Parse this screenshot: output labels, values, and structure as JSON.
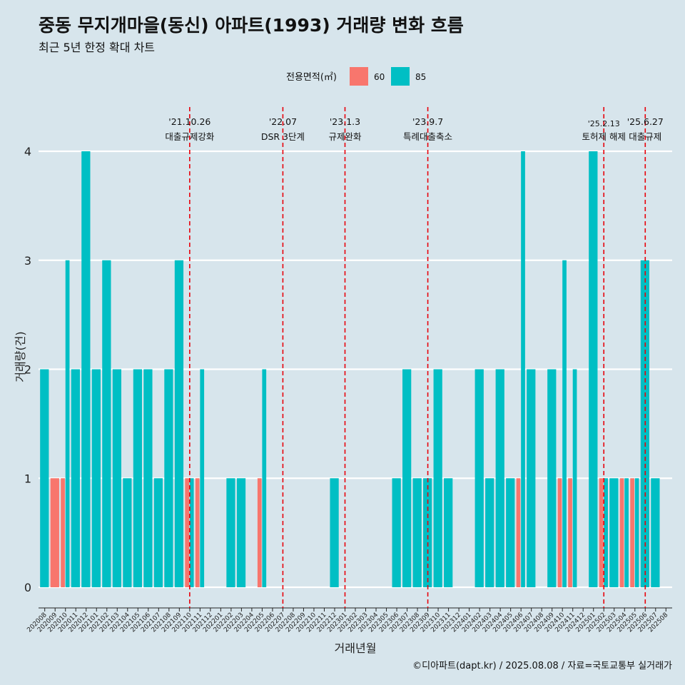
{
  "header": {
    "title": "중동 무지개마을(동신) 아파트(1993) 거래량 변화 흐름",
    "subtitle": "최근 5년 한정 확대 차트"
  },
  "caption": "©디아파트(dapt.kr) / 2025.08.08 / 자료=국토교통부 실거래가",
  "colors": {
    "background": "#d7e5ec",
    "gridline": "#ffffff",
    "s60": "#f8766d",
    "s85": "#00bfc4",
    "event_line": "#e8000b"
  },
  "chart_data": {
    "type": "bar",
    "xlabel": "거래년월",
    "ylabel": "거래량(건)",
    "ylim": [
      0,
      4
    ],
    "yticks": [
      0,
      1,
      2,
      3,
      4
    ],
    "grid": true,
    "legend": {
      "title": "전용면적(㎡)",
      "position": "top",
      "entries": [
        "60",
        "85"
      ]
    },
    "categories": [
      "202008",
      "202009",
      "202010",
      "202011",
      "202012",
      "202101",
      "202102",
      "202103",
      "202104",
      "202105",
      "202106",
      "202107",
      "202108",
      "202109",
      "202110",
      "202111",
      "202112",
      "202201",
      "202202",
      "202203",
      "202204",
      "202205",
      "202206",
      "202207",
      "202208",
      "202209",
      "202210",
      "202211",
      "202212",
      "202301",
      "202302",
      "202303",
      "202304",
      "202305",
      "202306",
      "202307",
      "202308",
      "202309",
      "202310",
      "202311",
      "202312",
      "202401",
      "202402",
      "202403",
      "202404",
      "202405",
      "202406",
      "202407",
      "202408",
      "202409",
      "202410",
      "202411",
      "202412",
      "202501",
      "202502",
      "202503",
      "202504",
      "202505",
      "202506",
      "202507",
      "202508"
    ],
    "series": [
      {
        "name": "60",
        "color": "#f8766d",
        "values": [
          0,
          1,
          1,
          0,
          0,
          0,
          0,
          0,
          0,
          0,
          0,
          0,
          0,
          0,
          1,
          1,
          0,
          0,
          0,
          0,
          0,
          1,
          0,
          0,
          0,
          0,
          0,
          0,
          0,
          0,
          0,
          0,
          0,
          0,
          0,
          0,
          0,
          0,
          0,
          0,
          0,
          0,
          0,
          0,
          0,
          0,
          1,
          0,
          0,
          0,
          1,
          1,
          0,
          0,
          1,
          0,
          1,
          1,
          0,
          0,
          0
        ]
      },
      {
        "name": "85",
        "color": "#00bfc4",
        "values": [
          2,
          0,
          3,
          2,
          4,
          2,
          3,
          2,
          1,
          2,
          2,
          1,
          2,
          3,
          1,
          2,
          0,
          0,
          1,
          1,
          0,
          2,
          0,
          0,
          0,
          0,
          0,
          0,
          1,
          0,
          0,
          0,
          0,
          0,
          1,
          2,
          1,
          1,
          2,
          1,
          0,
          0,
          2,
          1,
          2,
          1,
          4,
          2,
          0,
          2,
          3,
          2,
          0,
          4,
          1,
          1,
          1,
          1,
          3,
          1,
          0
        ]
      }
    ],
    "events": [
      {
        "date": "'21.10.26",
        "label": "대출규제강화",
        "month": "202110"
      },
      {
        "date": "'22.07",
        "label": "DSR 3단계",
        "month": "202207"
      },
      {
        "date": "'23.1.3",
        "label": "규제완화",
        "month": "202301"
      },
      {
        "date": "'23.9.7",
        "label": "특례대출축소",
        "month": "202309"
      },
      {
        "date": "'25.2.13",
        "label": "토허제 해제",
        "month": "202502"
      },
      {
        "date": "'25.6.27",
        "label": "대출규제",
        "month": "202506"
      }
    ]
  }
}
